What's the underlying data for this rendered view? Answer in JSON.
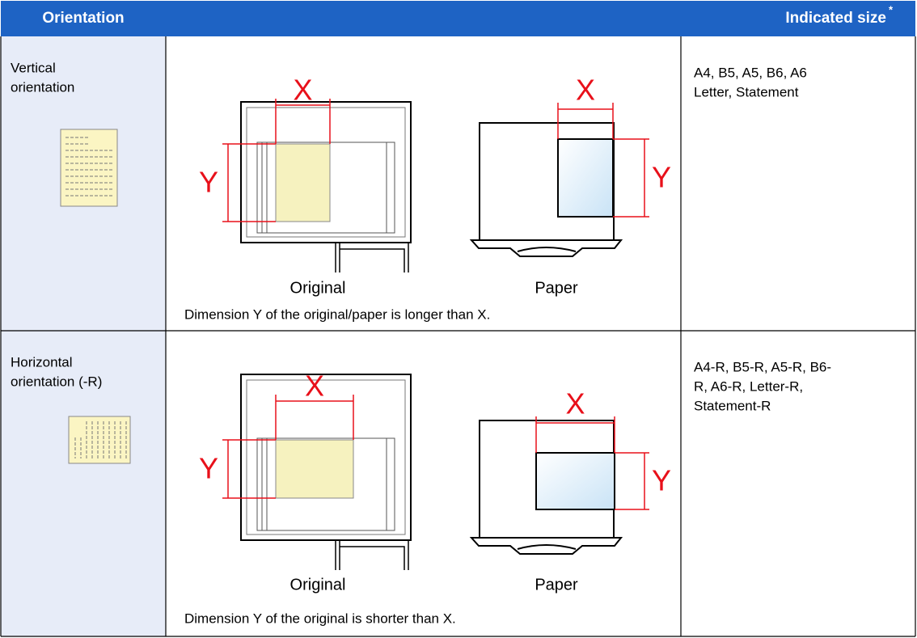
{
  "header": {
    "orientation": "Orientation",
    "size": "Indicated size",
    "size_mark": "*"
  },
  "rows": [
    {
      "orientation": [
        "Vertical",
        "orientation"
      ],
      "x_label": "X",
      "y_label": "Y",
      "original": "Original",
      "paper": "Paper",
      "note": "Dimension Y of the original/paper is longer than X.",
      "sizes": [
        "A4, B5, A5, B6, A6",
        "Letter, Statement"
      ]
    },
    {
      "orientation": [
        "Horizontal",
        "orientation (-R)"
      ],
      "x_label": "X",
      "y_label": "Y",
      "original": "Original",
      "paper": "Paper",
      "note": "Dimension Y of the original is shorter than X.",
      "sizes": [
        "A4-R, B5-R, A5-R, B6-",
        "R, A6-R, Letter-R,",
        "Statement-R"
      ]
    }
  ]
}
